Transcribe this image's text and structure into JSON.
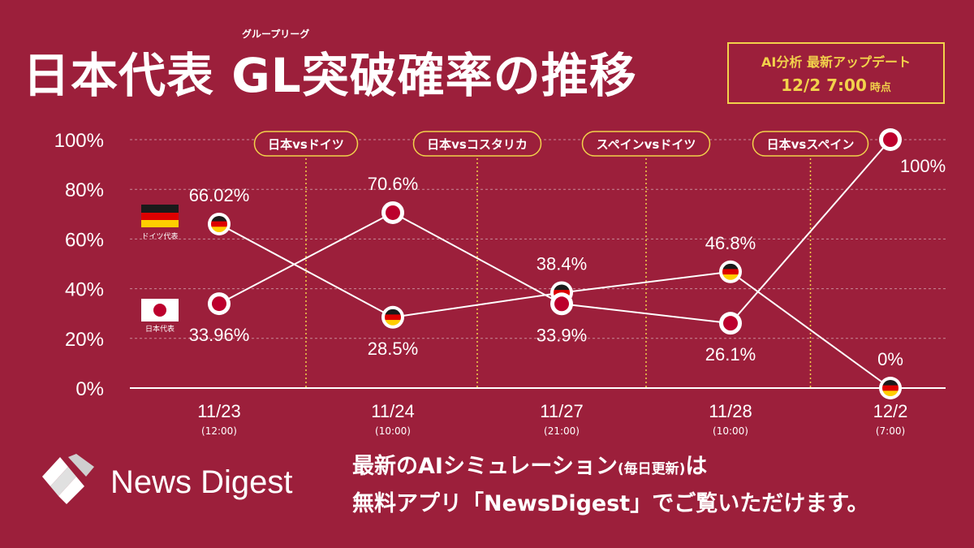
{
  "header": {
    "title": "日本代表 GL突破確率の推移",
    "ruby": "グループリーグ",
    "update_line1": "AI分析 最新アップデート",
    "update_time": "12/2 7:00",
    "update_suffix": "時点"
  },
  "footer": {
    "logo_text": "News Digest",
    "promo_line1_a": "最新のAIシミュレーション",
    "promo_line1_small": "(毎日更新)",
    "promo_line1_b": "は",
    "promo_line2": "無料アプリ「NewsDigest」でご覧いただけます。"
  },
  "colors": {
    "background": "#9c1f3b",
    "accent": "#f2d24b",
    "line": "#ffffff",
    "japan_red": "#bc002d",
    "germany_black": "#1a1a1a",
    "germany_red": "#dd0000",
    "germany_gold": "#ffce00"
  },
  "chart_data": {
    "type": "line",
    "categories": [
      "11/23",
      "11/24",
      "11/27",
      "11/28",
      "12/2"
    ],
    "category_sublabels": [
      "(12:00)",
      "(10:00)",
      "(21:00)",
      "(10:00)",
      "(7:00)"
    ],
    "ylim": [
      0,
      100
    ],
    "yticks": [
      "100%",
      "80%",
      "60%",
      "40%",
      "20%",
      "0%"
    ],
    "grid": true,
    "legend": "left",
    "matches": [
      "日本vsドイツ",
      "日本vsコスタリカ",
      "スペインvsドイツ",
      "日本vsスペイン"
    ],
    "series": [
      {
        "name": "ドイツ代表",
        "icon": "germany-flag-icon",
        "values": [
          66.02,
          28.5,
          38.4,
          46.8,
          0
        ],
        "labels": [
          "66.02%",
          "28.5%",
          "38.4%",
          "46.8%",
          "0%"
        ]
      },
      {
        "name": "日本代表",
        "icon": "japan-flag-icon",
        "values": [
          33.96,
          70.6,
          33.9,
          26.1,
          100
        ],
        "labels": [
          "33.96%",
          "70.6%",
          "33.9%",
          "26.1%",
          "100%"
        ]
      }
    ]
  }
}
